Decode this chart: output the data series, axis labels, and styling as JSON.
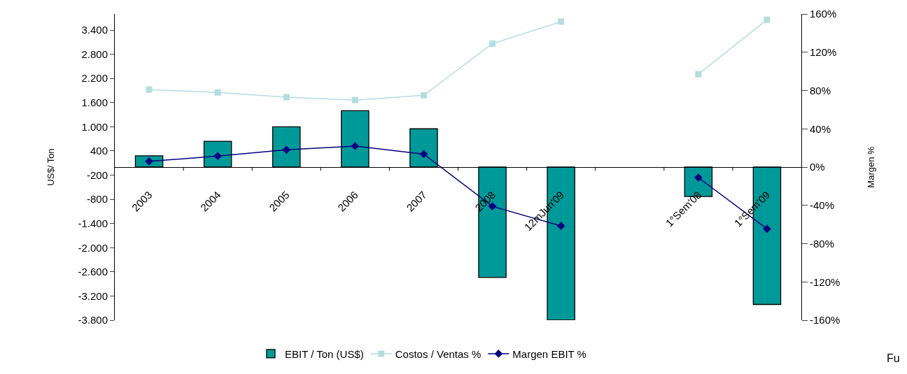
{
  "chart_data": {
    "type": "bar",
    "categories": [
      "2003",
      "2004",
      "2005",
      "2006",
      "2007",
      "2008",
      "12mJun'09",
      null,
      "1°Sem'08",
      "1°Sem'09"
    ],
    "series": [
      {
        "name": "EBIT / Ton (US$)",
        "color": "#009999",
        "values": [
          280,
          640,
          1000,
          1400,
          950,
          -2740,
          -3800,
          null,
          -730,
          -3410
        ]
      },
      {
        "name": "Costos / Ventas %",
        "type": "line",
        "axis": "y2",
        "color": "#b4dde0",
        "marker": "square",
        "values": [
          81,
          78,
          73,
          70,
          75,
          129,
          152,
          null,
          97,
          154
        ]
      },
      {
        "name": "Margen EBIT %",
        "type": "line",
        "axis": "y2",
        "color": "#000080",
        "marker": "diamond",
        "values": [
          6,
          11.5,
          18,
          22,
          13.6,
          -41,
          -61.5,
          null,
          -11,
          -64.6
        ]
      }
    ],
    "ylabel": "US$/ Ton",
    "y2label": "Margen %",
    "ylim": [
      -3800,
      3800
    ],
    "yticks": [
      {
        "value": -3800,
        "label": "-3.800"
      },
      {
        "value": -3200,
        "label": "-3.200"
      },
      {
        "value": -2600,
        "label": "-2.600"
      },
      {
        "value": -2000,
        "label": "-2.000"
      },
      {
        "value": -1400,
        "label": "-1.400"
      },
      {
        "value": -800,
        "label": "-800"
      },
      {
        "value": -200,
        "label": "-200"
      },
      {
        "value": 400,
        "label": "400"
      },
      {
        "value": 1000,
        "label": "1.000"
      },
      {
        "value": 1600,
        "label": "1.600"
      },
      {
        "value": 2200,
        "label": "2.200"
      },
      {
        "value": 2800,
        "label": "2.800"
      },
      {
        "value": 3400,
        "label": "3.400"
      }
    ],
    "y2lim": [
      -160,
      160
    ],
    "y2ticks": [
      {
        "value": -160,
        "label": "-160%"
      },
      {
        "value": -120,
        "label": "-120%"
      },
      {
        "value": -80,
        "label": "-80%"
      },
      {
        "value": -40,
        "label": "-40%"
      },
      {
        "value": 0,
        "label": "0%"
      },
      {
        "value": 40,
        "label": "40%"
      },
      {
        "value": 80,
        "label": "80%"
      },
      {
        "value": 120,
        "label": "120%"
      },
      {
        "value": 160,
        "label": "160%"
      }
    ],
    "legend": "bottom",
    "line_style": "solid",
    "annotations": [
      "Fu"
    ]
  }
}
